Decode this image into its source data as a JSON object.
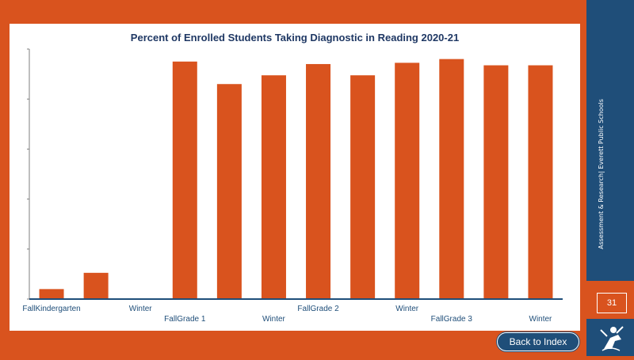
{
  "colors": {
    "background": "#d9531e",
    "bar": "#d9531e",
    "sidebar": "#1f4e79",
    "title": "#1f3864",
    "axis_label": "#1f4e79"
  },
  "sidebar": {
    "text": "Assessment & Research| Everett Public Schools",
    "page_number": "31",
    "logo_icon": "swimmer-logo-icon"
  },
  "navigation": {
    "back_label": "Back to Index"
  },
  "chart_data": {
    "type": "bar",
    "title": "Percent of Enrolled Students Taking Diagnostic in Reading 2020-21",
    "xlabel": "",
    "ylabel": "",
    "ylim": [
      0,
      100
    ],
    "grid": false,
    "categories": [
      "Fall",
      "",
      "Winter",
      "Fall",
      "",
      "Winter",
      "Fall",
      "",
      "Winter",
      "Fall",
      "",
      "Winter"
    ],
    "values": [
      4,
      10.5,
      0,
      95,
      86,
      89.5,
      94,
      89.5,
      94.5,
      96,
      93.5,
      93.5
    ],
    "group_labels": [
      "Kindergarten",
      "Grade 1",
      "Grade 2",
      "Grade 3"
    ]
  }
}
